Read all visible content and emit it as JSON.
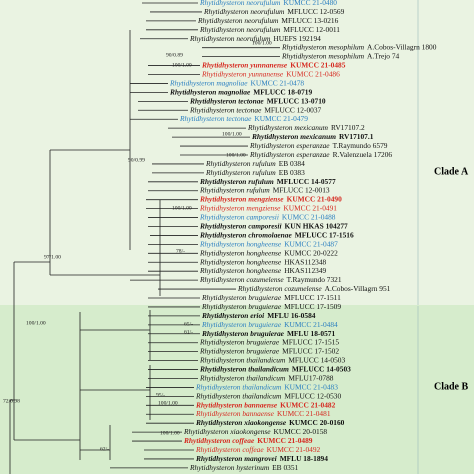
{
  "tree": {
    "clades": [
      "Clade A",
      "Clade B"
    ],
    "leaves": [
      {
        "name": "Rhytidhysteron neorufulum",
        "strain": "KUMCC 21-0480",
        "color": "#2b7fc0",
        "bold": false
      },
      {
        "name": "Rhytidhysteron neorufulum",
        "strain": "MFLUCC 12-0569",
        "color": "#111111",
        "bold": false
      },
      {
        "name": "Rhytidhysteron neorufulum",
        "strain": "MFLUCC 13-0216",
        "color": "#111111",
        "bold": false
      },
      {
        "name": "Rhytidhysteron neorufulum",
        "strain": "MFLUCC 12-0011",
        "color": "#111111",
        "bold": false
      },
      {
        "name": "Rhytidhysteron neorufulum",
        "strain": "HUEFS 192194",
        "color": "#111111",
        "bold": false
      },
      {
        "name": "Rhytidhysteron mesophilum",
        "strain": "A.Cobos-Villagrn 1800",
        "color": "#111111",
        "bold": false
      },
      {
        "name": "Rhytidhysteron mesophilum",
        "strain": "A.Trejo 74",
        "color": "#111111",
        "bold": false
      },
      {
        "name": "Rhytidhysteron yunnanense",
        "strain": "KUMCC 21-0485",
        "color": "#d6281f",
        "bold": true
      },
      {
        "name": "Rhytidhysteron yunnanense",
        "strain": "KUMCC 21-0486",
        "color": "#d6281f",
        "bold": false
      },
      {
        "name": "Rhytidhysteron magnoliae",
        "strain": "KUMCC 21-0478",
        "color": "#2b7fc0",
        "bold": false
      },
      {
        "name": "Rhytidhysteron magnoliae",
        "strain": "MFLUCC 18-0719",
        "color": "#111111",
        "bold": true
      },
      {
        "name": "Rhytidhysteron tectonae",
        "strain": "MFLUCC 13-0710",
        "color": "#111111",
        "bold": true
      },
      {
        "name": "Rhytidhysteron tectonae",
        "strain": "MFLUCC 12-0037",
        "color": "#111111",
        "bold": false
      },
      {
        "name": "Rhytidhysteron tectonae",
        "strain": "KUMCC 21-0479",
        "color": "#2b7fc0",
        "bold": false
      },
      {
        "name": "Rhytidhysteron mexicanum",
        "strain": "RV17107.2",
        "color": "#111111",
        "bold": false
      },
      {
        "name": "Rhytidhysteron mexicanum",
        "strain": "RV17107.1",
        "color": "#111111",
        "bold": true
      },
      {
        "name": "Rhytidhysteron esperanzae",
        "strain": "T.Raymundo 6579",
        "color": "#111111",
        "bold": false
      },
      {
        "name": "Rhytidhysteron esperanzae",
        "strain": "R.Valenzuela 17206",
        "color": "#111111",
        "bold": false
      },
      {
        "name": "Rhytidhysteron rufulum",
        "strain": "EB 0384",
        "color": "#111111",
        "bold": false
      },
      {
        "name": "Rhytidhysteron rufulum",
        "strain": "EB 0383",
        "color": "#111111",
        "bold": false
      },
      {
        "name": "Rhytidhysteron rufulum",
        "strain": "MFLUCC 14-0577",
        "color": "#111111",
        "bold": true
      },
      {
        "name": "Rhytidhysteron rufulum",
        "strain": "MFLUCC 12-0013",
        "color": "#111111",
        "bold": false
      },
      {
        "name": "Rhytidhysteron mengziense",
        "strain": "KUMCC 21-0490",
        "color": "#d6281f",
        "bold": true
      },
      {
        "name": "Rhytidhysteron mengziense",
        "strain": "KUMCC 21-0491",
        "color": "#d6281f",
        "bold": false
      },
      {
        "name": "Rhytidhysteron camporesii",
        "strain": "KUMCC 21-0488",
        "color": "#2b7fc0",
        "bold": false
      },
      {
        "name": "Rhytidhysteron camporesii",
        "strain": "KUN HKAS 104277",
        "color": "#111111",
        "bold": true
      },
      {
        "name": "Rhytidhysteron chromolaenae",
        "strain": "MFLUCC 17-1516",
        "color": "#111111",
        "bold": true
      },
      {
        "name": "Rhytidhysteron hongheense",
        "strain": "KUMCC 21-0487",
        "color": "#2b7fc0",
        "bold": false
      },
      {
        "name": "Rhytidhysteron hongheense",
        "strain": "KUMCC 20-0222",
        "color": "#111111",
        "bold": false
      },
      {
        "name": "Rhytidhysteron hongheense",
        "strain": "HKAS112348",
        "color": "#111111",
        "bold": false
      },
      {
        "name": "Rhytidhysteron hongheense",
        "strain": "HKAS112349",
        "color": "#111111",
        "bold": false
      },
      {
        "name": "Rhytidhysteron cozumelense",
        "strain": "T.Raymundo 7321",
        "color": "#111111",
        "bold": false
      },
      {
        "name": "Rhytidhysteron cozumelense",
        "strain": "A.Cobos-Villagrn 951",
        "color": "#111111",
        "bold": false
      },
      {
        "name": "Rhytidhysteron bruguierae",
        "strain": "MFLUCC 17-1511",
        "color": "#111111",
        "bold": false
      },
      {
        "name": "Rhytidhysteron bruguierae",
        "strain": "MFLUCC 17-1509",
        "color": "#111111",
        "bold": false
      },
      {
        "name": "Rhytidhysteron erioi",
        "strain": "MFLU 16-0584",
        "color": "#111111",
        "bold": true
      },
      {
        "name": "Rhytidhysteron bruguierae",
        "strain": "KUMCC 21-0484",
        "color": "#2b7fc0",
        "bold": false
      },
      {
        "name": "Rhytidhysteron bruguierae",
        "strain": "MFLU 18-0571",
        "color": "#111111",
        "bold": true
      },
      {
        "name": "Rhytidhysteron bruguierae",
        "strain": "MFLUCC 17-1515",
        "color": "#111111",
        "bold": false
      },
      {
        "name": "Rhytidhysteron bruguierae",
        "strain": "MFLUCC 17-1502",
        "color": "#111111",
        "bold": false
      },
      {
        "name": "Rhytidhysteron thailandicum",
        "strain": "MFLUCC 14-0503",
        "color": "#111111",
        "bold": false
      },
      {
        "name": "Rhytidhysteron thailandicum",
        "strain": "MFLUCC 14-0503",
        "color": "#111111",
        "bold": true
      },
      {
        "name": "Rhytidhysteron thailandicum",
        "strain": "MFLU17-0788",
        "color": "#111111",
        "bold": false
      },
      {
        "name": "Rhytidhysteron thailandicum",
        "strain": "KUMCC 21-0483",
        "color": "#2b7fc0",
        "bold": false
      },
      {
        "name": "Rhytidhysteron thailandicum",
        "strain": "MFLUCC 12-0530",
        "color": "#111111",
        "bold": false
      },
      {
        "name": "Rhytidhysteron bannaense",
        "strain": "KUMCC 21-0482",
        "color": "#d6281f",
        "bold": true
      },
      {
        "name": "Rhytidhysteron bannaense",
        "strain": "KUMCC 21-0481",
        "color": "#d6281f",
        "bold": false
      },
      {
        "name": "Rhytidhysteron xiaokongense",
        "strain": "KUMCC 20-0160",
        "color": "#111111",
        "bold": true
      },
      {
        "name": "Rhytidhysteron xiaokongense",
        "strain": "KUMCC 20-0158",
        "color": "#111111",
        "bold": false
      },
      {
        "name": "Rhytidhysteron coffeae",
        "strain": "KUMCC 21-0489",
        "color": "#d6281f",
        "bold": true
      },
      {
        "name": "Rhytidhysteron coffeae",
        "strain": "KUMCC 21-0492",
        "color": "#d6281f",
        "bold": false
      },
      {
        "name": "Rhytidhysteron mangrovei",
        "strain": "MFLU 18-1894",
        "color": "#111111",
        "bold": true
      },
      {
        "name": "Rhytidhysteron hysterinum",
        "strain": "EB 0351",
        "color": "#111111",
        "bold": false
      }
    ],
    "supports": [
      "100/1.00",
      "90/0.89",
      "100/1.00",
      "100/1.00",
      "100/1.00",
      "90/0.99",
      "100/1.00",
      "97/1.00",
      "78/-",
      "65/-",
      "61/-",
      "100/1.00",
      "72/0.98",
      "95/-",
      "100/1.00",
      "100/1.00",
      "62/-"
    ]
  }
}
